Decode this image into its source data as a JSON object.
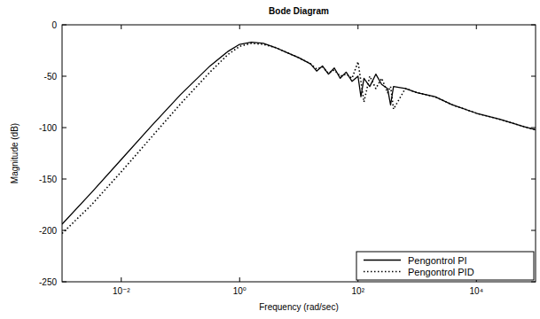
{
  "chart_data": {
    "type": "line",
    "title": "Bode Diagram",
    "x_label": "Frequency (rad/sec)",
    "y_label": "Magnitude (dB)",
    "log": "x",
    "grid": false,
    "legend": "lower right",
    "xlim": [
      0.001,
      100000
    ],
    "xticks": [
      {
        "value": 0.01,
        "label": "10⁻²"
      },
      {
        "value": 1,
        "label": "10⁰"
      },
      {
        "value": 100,
        "label": "10²"
      },
      {
        "value": 10000,
        "label": "10⁴"
      }
    ],
    "ylim": [
      -250,
      0
    ],
    "yticks": [
      -250,
      -200,
      -150,
      -100,
      -50,
      0
    ],
    "x": [
      0.001,
      0.00316,
      0.01,
      0.0316,
      0.1,
      0.316,
      0.631,
      1,
      1.58,
      2.51,
      3.98,
      6.31,
      10,
      15.8,
      20,
      25.1,
      31.6,
      39.8,
      50.1,
      63.1,
      79.4,
      100,
      112,
      126,
      158,
      200,
      251,
      316,
      355,
      398,
      631,
      1000,
      2000,
      3980,
      10000,
      25100,
      63100,
      100000
    ],
    "series": [
      {
        "name": "Pengontrol PI",
        "color": "#000000",
        "line_style": "solid",
        "values": [
          -194,
          -163,
          -131,
          -99,
          -68,
          -40,
          -26,
          -19,
          -17,
          -18,
          -22,
          -27,
          -32,
          -38,
          -45,
          -40,
          -48,
          -42,
          -52,
          -46,
          -55,
          -50,
          -70,
          -52,
          -60,
          -48,
          -58,
          -62,
          -78,
          -60,
          -62,
          -66,
          -70,
          -78,
          -86,
          -92,
          -99,
          -102
        ]
      },
      {
        "name": "Pengontrol PID",
        "color": "#000000",
        "line_style": "dotted",
        "values": [
          -203,
          -175,
          -143,
          -110,
          -77,
          -46,
          -29,
          -21,
          -18,
          -19,
          -22,
          -27,
          -32,
          -38,
          -43,
          -41,
          -47,
          -44,
          -50,
          -48,
          -52,
          -36,
          -55,
          -75,
          -50,
          -62,
          -52,
          -66,
          -60,
          -82,
          -62,
          -66,
          -70,
          -78,
          -86,
          -92,
          -99,
          -102
        ]
      }
    ]
  }
}
